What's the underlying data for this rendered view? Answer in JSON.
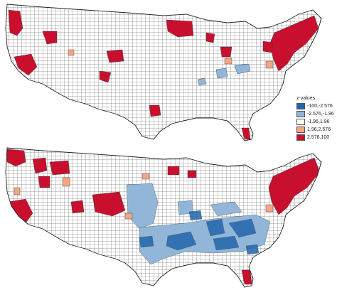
{
  "legend": {
    "title": "z-values",
    "items": [
      {
        "label": "-100,-2.576",
        "color": "#2166ac"
      },
      {
        "label": "-2.576,-1.96",
        "color": "#92b6d8"
      },
      {
        "label": "-1.96,1.96",
        "color": "#ffffff"
      },
      {
        "label": "1.96,2.576",
        "color": "#f4a582"
      },
      {
        "label": "2.576,100",
        "color": "#c8102e"
      }
    ]
  },
  "colors": {
    "county_border": "#333333",
    "land": "#ffffff"
  }
}
